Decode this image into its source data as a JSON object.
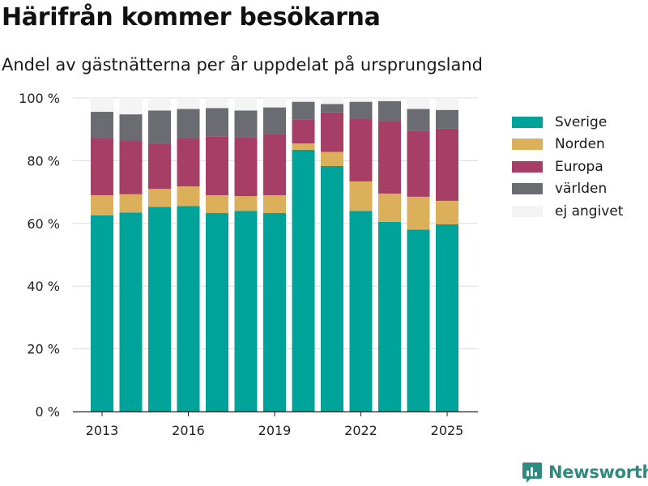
{
  "title": "Härifrån kommer besökarna",
  "subtitle": "Andel av gästnätterna per år uppdelat på ursprungsland",
  "brand": {
    "name": "Newsworthy",
    "logo_icon": "chart-bubble-icon"
  },
  "chart_data": {
    "type": "bar",
    "stacked": true,
    "categories": [
      2013,
      2014,
      2015,
      2016,
      2017,
      2018,
      2019,
      2020,
      2021,
      2022,
      2023,
      2024,
      2025
    ],
    "x_ticks": [
      "2013",
      "2016",
      "2019",
      "2022",
      "2025"
    ],
    "y_ticks": [
      "0 %",
      "20 %",
      "40 %",
      "60 %",
      "80 %",
      "100 %"
    ],
    "ylim": [
      0,
      100
    ],
    "grid": true,
    "legend_position": "right",
    "series": [
      {
        "name": "Sverige",
        "color": "#00a39a",
        "values": [
          62.6,
          63.5,
          65.3,
          65.5,
          63.3,
          64.0,
          63.3,
          83.5,
          78.3,
          64.0,
          60.5,
          58.0,
          59.7
        ]
      },
      {
        "name": "Norden",
        "color": "#dcaf5a",
        "values": [
          6.4,
          5.8,
          5.7,
          6.3,
          5.7,
          4.7,
          5.7,
          2.0,
          4.5,
          9.4,
          9.0,
          10.5,
          7.5
        ]
      },
      {
        "name": "Europa",
        "color": "#a63e66",
        "values": [
          18.2,
          17.0,
          14.5,
          15.4,
          18.8,
          18.8,
          19.6,
          7.7,
          12.6,
          20.0,
          23.0,
          21.0,
          23.0
        ]
      },
      {
        "name": "världen",
        "color": "#6b6b72",
        "values": [
          8.4,
          8.5,
          10.5,
          9.3,
          9.0,
          8.5,
          8.4,
          5.6,
          2.7,
          5.4,
          6.5,
          7.0,
          6.0
        ]
      },
      {
        "name": "ej angivet",
        "color": "#f4f4f4",
        "values": [
          4.4,
          5.2,
          4.0,
          3.5,
          3.2,
          4.0,
          3.0,
          1.2,
          1.9,
          1.2,
          1.0,
          3.5,
          3.8
        ]
      }
    ]
  }
}
